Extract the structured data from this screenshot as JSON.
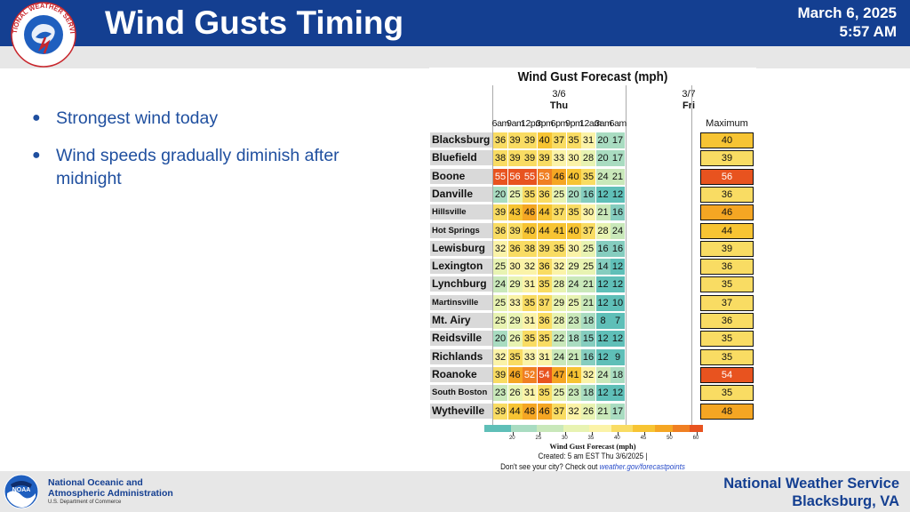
{
  "header": {
    "title": "Wind Gusts Timing",
    "date": "March 6, 2025",
    "time": "5:57 AM",
    "logo_text": "NATIONAL WEATHER SERVICE"
  },
  "bullets": [
    "Strongest wind today",
    "Wind speeds gradually diminish after midnight"
  ],
  "graphic": {
    "title": "Wind Gust Forecast (mph)",
    "day1_date": "3/6",
    "day1_name": "Thu",
    "day2_date": "3/7",
    "day2_name": "Fri",
    "times": [
      "6am",
      "9am",
      "12pm",
      "3pm",
      "6pm",
      "9pm",
      "12am",
      "3am",
      "6am"
    ],
    "max_header": "Maximum",
    "legend_title": "Wind Gust Forecast (mph)",
    "legend_ticks": [
      "20",
      "25",
      "30",
      "35",
      "40",
      "45",
      "50",
      "60"
    ],
    "created": "Created: 5 am EST Thu 3/6/2025 |",
    "see_city": "Don't see your city? Check out",
    "link": "weather.gov/forecastpoints"
  },
  "chart_data": {
    "type": "heatmap",
    "title": "Wind Gust Forecast (mph)",
    "x": [
      "6am",
      "9am",
      "12pm",
      "3pm",
      "6pm",
      "9pm",
      "12am",
      "3am",
      "6am"
    ],
    "colorbar_ticks": [
      20,
      25,
      30,
      35,
      40,
      45,
      50,
      60
    ],
    "rows": [
      {
        "city": "Blacksburg",
        "values": [
          36,
          39,
          39,
          40,
          37,
          35,
          31,
          20,
          17
        ],
        "max": 40
      },
      {
        "city": "Bluefield",
        "values": [
          38,
          39,
          39,
          39,
          33,
          30,
          28,
          20,
          17
        ],
        "max": 39
      },
      {
        "city": "Boone",
        "values": [
          55,
          56,
          55,
          53,
          46,
          40,
          35,
          24,
          21
        ],
        "max": 56
      },
      {
        "city": "Danville",
        "values": [
          20,
          25,
          35,
          36,
          25,
          20,
          16,
          12,
          12
        ],
        "max": 36
      },
      {
        "city": "Hillsville",
        "values": [
          39,
          43,
          46,
          44,
          37,
          35,
          30,
          21,
          16
        ],
        "max": 46
      },
      {
        "city": "Hot Springs",
        "values": [
          36,
          39,
          40,
          44,
          41,
          40,
          37,
          28,
          24
        ],
        "max": 44
      },
      {
        "city": "Lewisburg",
        "values": [
          32,
          36,
          38,
          39,
          35,
          30,
          25,
          16,
          16
        ],
        "max": 39
      },
      {
        "city": "Lexington",
        "values": [
          25,
          30,
          32,
          36,
          32,
          29,
          25,
          14,
          12
        ],
        "max": 36
      },
      {
        "city": "Lynchburg",
        "values": [
          24,
          29,
          31,
          35,
          28,
          24,
          21,
          12,
          12
        ],
        "max": 35
      },
      {
        "city": "Martinsville",
        "values": [
          25,
          33,
          35,
          37,
          29,
          25,
          21,
          12,
          10
        ],
        "max": 37
      },
      {
        "city": "Mt. Airy",
        "values": [
          25,
          29,
          31,
          36,
          28,
          23,
          18,
          8,
          7
        ],
        "max": 36
      },
      {
        "city": "Reidsville",
        "values": [
          20,
          26,
          35,
          35,
          22,
          18,
          15,
          12,
          12
        ],
        "max": 35
      },
      {
        "city": "Richlands",
        "values": [
          32,
          35,
          33,
          31,
          24,
          21,
          16,
          12,
          9
        ],
        "max": 35
      },
      {
        "city": "Roanoke",
        "values": [
          39,
          46,
          52,
          54,
          47,
          41,
          32,
          24,
          18
        ],
        "max": 54
      },
      {
        "city": "South Boston",
        "values": [
          23,
          26,
          31,
          35,
          25,
          23,
          18,
          12,
          12
        ],
        "max": 35
      },
      {
        "city": "Wytheville",
        "values": [
          39,
          44,
          48,
          46,
          37,
          32,
          26,
          21,
          17
        ],
        "max": 48
      }
    ]
  },
  "footer": {
    "noaa_line1": "National Oceanic and",
    "noaa_line2": "Atmospheric Administration",
    "noaa_sub": "U.S. Department of Commerce",
    "noaa_logo_text": "NOAA",
    "office_line1": "National Weather Service",
    "office_line2": "Blacksburg, VA"
  },
  "colors": {
    "header_bg": "#143f91",
    "text_blue": "#1f4f9f",
    "footer_bg": "#e7e7e7"
  }
}
